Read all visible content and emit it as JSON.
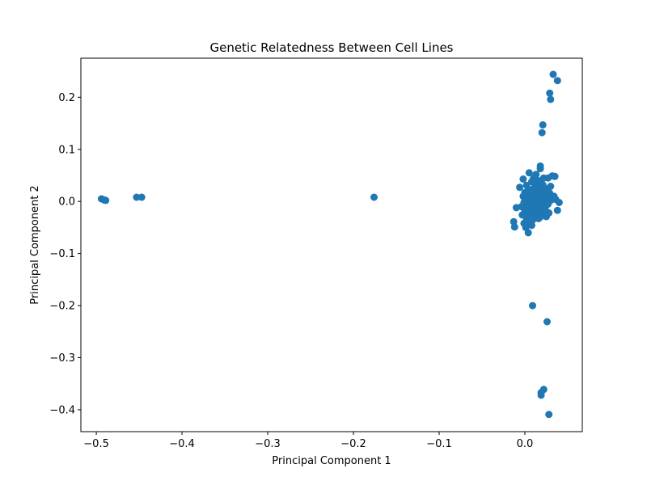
{
  "chart_data": {
    "type": "scatter",
    "title": "Genetic Relatedness Between Cell Lines",
    "xlabel": "Principal Component 1",
    "ylabel": "Principal Component 2",
    "xlim": [
      -0.518,
      0.067
    ],
    "ylim": [
      -0.442,
      0.275
    ],
    "xticks": [
      -0.5,
      -0.4,
      -0.3,
      -0.2,
      -0.1,
      0.0
    ],
    "xtick_labels": [
      "−0.5",
      "−0.4",
      "−0.3",
      "−0.2",
      "−0.1",
      "0.0"
    ],
    "yticks": [
      -0.4,
      -0.3,
      -0.2,
      -0.1,
      0.0,
      0.1,
      0.2
    ],
    "ytick_labels": [
      "−0.4",
      "−0.3",
      "−0.2",
      "−0.1",
      "0.0",
      "0.1",
      "0.2"
    ],
    "grid": false,
    "marker_color": "#1f77b4",
    "points": [
      [
        -0.494,
        0.005
      ],
      [
        -0.491,
        0.003
      ],
      [
        -0.489,
        0.002
      ],
      [
        -0.453,
        0.008
      ],
      [
        -0.447,
        0.008
      ],
      [
        -0.176,
        0.008
      ],
      [
        0.033,
        0.244
      ],
      [
        0.038,
        0.232
      ],
      [
        0.029,
        0.208
      ],
      [
        0.03,
        0.196
      ],
      [
        0.021,
        0.147
      ],
      [
        0.02,
        0.132
      ],
      [
        0.009,
        -0.2
      ],
      [
        0.026,
        -0.231
      ],
      [
        0.022,
        -0.361
      ],
      [
        0.019,
        -0.367
      ],
      [
        0.019,
        -0.372
      ],
      [
        0.028,
        -0.409
      ],
      [
        0.018,
        0.068
      ],
      [
        0.018,
        0.063
      ],
      [
        0.005,
        0.055
      ],
      [
        0.013,
        0.052
      ],
      [
        0.032,
        0.049
      ],
      [
        0.035,
        0.048
      ],
      [
        -0.002,
        0.043
      ],
      [
        0.01,
        0.044
      ],
      [
        0.022,
        0.045
      ],
      [
        0.027,
        0.045
      ],
      [
        0.008,
        0.038
      ],
      [
        0.015,
        0.04
      ],
      [
        0.019,
        0.04
      ],
      [
        -0.006,
        0.027
      ],
      [
        0.002,
        0.031
      ],
      [
        0.012,
        0.034
      ],
      [
        0.021,
        0.032
      ],
      [
        0.03,
        0.029
      ],
      [
        0.004,
        0.022
      ],
      [
        0.01,
        0.025
      ],
      [
        0.017,
        0.027
      ],
      [
        0.025,
        0.024
      ],
      [
        0.0,
        0.017
      ],
      [
        0.007,
        0.018
      ],
      [
        0.014,
        0.02
      ],
      [
        0.022,
        0.018
      ],
      [
        0.029,
        0.016
      ],
      [
        -0.002,
        0.01
      ],
      [
        0.005,
        0.012
      ],
      [
        0.012,
        0.012
      ],
      [
        0.018,
        0.011
      ],
      [
        0.026,
        0.01
      ],
      [
        0.034,
        0.01
      ],
      [
        0.036,
        0.004
      ],
      [
        0.04,
        -0.002
      ],
      [
        0.002,
        0.004
      ],
      [
        0.009,
        0.005
      ],
      [
        0.016,
        0.003
      ],
      [
        0.023,
        0.004
      ],
      [
        0.03,
        0.002
      ],
      [
        -0.001,
        -0.002
      ],
      [
        0.006,
        -0.003
      ],
      [
        0.013,
        -0.004
      ],
      [
        0.02,
        -0.003
      ],
      [
        0.027,
        -0.005
      ],
      [
        -0.01,
        -0.012
      ],
      [
        -0.004,
        -0.01
      ],
      [
        0.003,
        -0.01
      ],
      [
        0.01,
        -0.011
      ],
      [
        0.017,
        -0.012
      ],
      [
        0.024,
        -0.011
      ],
      [
        0.038,
        -0.017
      ],
      [
        0.0,
        -0.018
      ],
      [
        0.007,
        -0.019
      ],
      [
        0.014,
        -0.02
      ],
      [
        0.021,
        -0.02
      ],
      [
        0.028,
        -0.022
      ],
      [
        -0.003,
        -0.026
      ],
      [
        0.004,
        -0.027
      ],
      [
        0.011,
        -0.028
      ],
      [
        0.018,
        -0.03
      ],
      [
        0.025,
        -0.029
      ],
      [
        0.002,
        -0.035
      ],
      [
        0.009,
        -0.036
      ],
      [
        0.016,
        -0.033
      ],
      [
        -0.001,
        -0.042
      ],
      [
        0.006,
        -0.042
      ],
      [
        -0.013,
        -0.039
      ],
      [
        -0.012,
        -0.049
      ],
      [
        0.001,
        -0.05
      ],
      [
        0.004,
        -0.06
      ],
      [
        0.008,
        -0.046
      ]
    ]
  }
}
